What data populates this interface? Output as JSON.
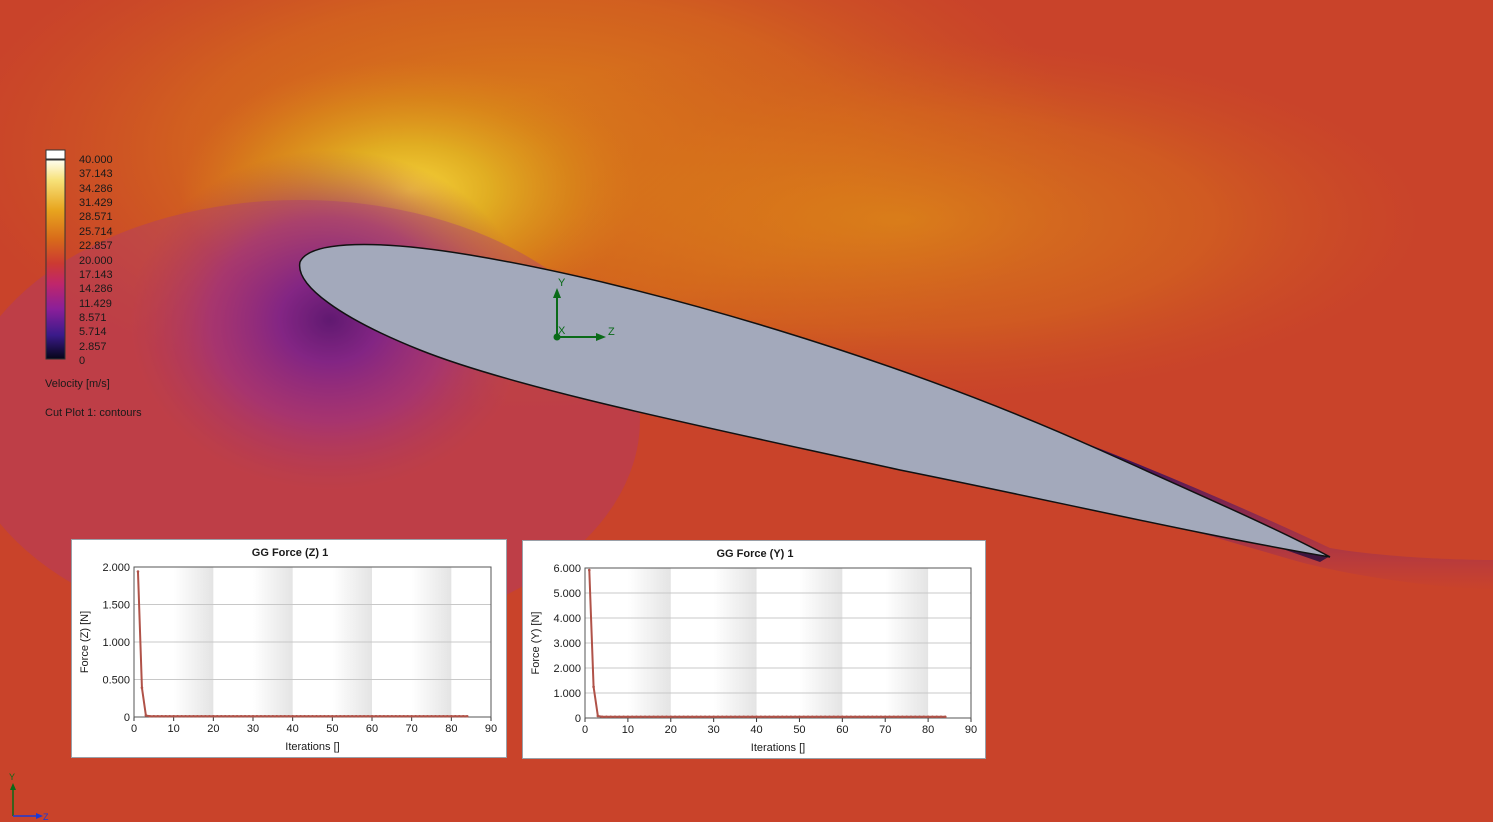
{
  "legend": {
    "ticks": [
      "40.000",
      "37.143",
      "34.286",
      "31.429",
      "28.571",
      "25.714",
      "22.857",
      "20.000",
      "17.143",
      "14.286",
      "11.429",
      "8.571",
      "5.714",
      "2.857",
      "0"
    ],
    "quantity_label": "Velocity [m/s]",
    "plot_label": "Cut Plot 1: contours"
  },
  "axes_triad": {
    "y": "Y",
    "x": "X",
    "z": "Z"
  },
  "corner_triad": {
    "y": "Y",
    "z": "Z"
  },
  "colors": {
    "freestream": "#c9432a",
    "suction_high": "#e3b324",
    "wake_low": "#2a0b5a",
    "airfoil": "#a3a9bb",
    "series": "#b05248"
  },
  "chart_data": [
    {
      "type": "line",
      "title": "GG Force (Z) 1",
      "xlabel": "Iterations []",
      "ylabel": "Force (Z) [N]",
      "xlim": [
        0,
        90
      ],
      "ylim": [
        0,
        2
      ],
      "x_ticks": [
        "0",
        "10",
        "20",
        "30",
        "40",
        "50",
        "60",
        "70",
        "80",
        "90"
      ],
      "y_ticks": [
        "0",
        "0.500",
        "1.000",
        "1.500",
        "2.000"
      ],
      "series": [
        {
          "x": [
            1,
            2,
            3,
            4,
            5,
            6,
            7,
            8,
            9,
            10,
            11,
            12,
            13,
            14,
            15,
            16,
            17,
            18,
            19,
            20,
            21,
            22,
            23,
            24,
            25,
            26,
            27,
            28,
            29,
            30,
            31,
            32,
            33,
            34,
            35,
            36,
            37,
            38,
            39,
            40,
            41,
            42,
            43,
            44,
            45,
            46,
            47,
            48,
            49,
            50,
            51,
            52,
            53,
            54,
            55,
            56,
            57,
            58,
            59,
            60,
            61,
            62,
            63,
            64,
            65,
            66,
            67,
            68,
            69,
            70,
            71,
            72,
            73,
            74,
            75,
            76,
            77,
            78,
            79,
            80,
            81,
            82,
            83,
            84
          ],
          "y": [
            1.94,
            0.39,
            0.02,
            0.01,
            0.01,
            0.01,
            0.01,
            0.01,
            0.01,
            0.01,
            0.01,
            0.01,
            0.01,
            0.01,
            0.01,
            0.01,
            0.01,
            0.01,
            0.01,
            0.01,
            0.01,
            0.01,
            0.01,
            0.01,
            0.01,
            0.01,
            0.01,
            0.01,
            0.01,
            0.01,
            0.01,
            0.01,
            0.01,
            0.01,
            0.01,
            0.01,
            0.01,
            0.01,
            0.01,
            0.01,
            0.01,
            0.01,
            0.01,
            0.01,
            0.01,
            0.01,
            0.01,
            0.01,
            0.01,
            0.01,
            0.01,
            0.01,
            0.01,
            0.01,
            0.01,
            0.01,
            0.01,
            0.01,
            0.01,
            0.01,
            0.01,
            0.01,
            0.01,
            0.01,
            0.01,
            0.01,
            0.01,
            0.01,
            0.01,
            0.01,
            0.01,
            0.01,
            0.01,
            0.01,
            0.01,
            0.01,
            0.01,
            0.01,
            0.01,
            0.01,
            0.01,
            0.01,
            0.01,
            0.01
          ]
        }
      ]
    },
    {
      "type": "line",
      "title": "GG Force (Y) 1",
      "xlabel": "Iterations []",
      "ylabel": "Force (Y) [N]",
      "xlim": [
        0,
        90
      ],
      "ylim": [
        0,
        6
      ],
      "x_ticks": [
        "0",
        "10",
        "20",
        "30",
        "40",
        "50",
        "60",
        "70",
        "80",
        "90"
      ],
      "y_ticks": [
        "0",
        "1.000",
        "2.000",
        "3.000",
        "4.000",
        "5.000",
        "6.000"
      ],
      "series": [
        {
          "x": [
            1,
            2,
            3,
            4,
            5,
            6,
            7,
            8,
            9,
            10,
            11,
            12,
            13,
            14,
            15,
            16,
            17,
            18,
            19,
            20,
            21,
            22,
            23,
            24,
            25,
            26,
            27,
            28,
            29,
            30,
            31,
            32,
            33,
            34,
            35,
            36,
            37,
            38,
            39,
            40,
            41,
            42,
            43,
            44,
            45,
            46,
            47,
            48,
            49,
            50,
            51,
            52,
            53,
            54,
            55,
            56,
            57,
            58,
            59,
            60,
            61,
            62,
            63,
            64,
            65,
            66,
            67,
            68,
            69,
            70,
            71,
            72,
            73,
            74,
            75,
            76,
            77,
            78,
            79,
            80,
            81,
            82,
            83,
            84
          ],
          "y": [
            5.92,
            1.25,
            0.08,
            0.05,
            0.05,
            0.05,
            0.05,
            0.05,
            0.05,
            0.05,
            0.05,
            0.05,
            0.05,
            0.05,
            0.05,
            0.05,
            0.05,
            0.05,
            0.05,
            0.05,
            0.05,
            0.05,
            0.05,
            0.05,
            0.05,
            0.05,
            0.05,
            0.05,
            0.05,
            0.05,
            0.05,
            0.05,
            0.05,
            0.05,
            0.05,
            0.05,
            0.05,
            0.05,
            0.05,
            0.05,
            0.05,
            0.05,
            0.05,
            0.05,
            0.05,
            0.05,
            0.05,
            0.05,
            0.05,
            0.05,
            0.05,
            0.05,
            0.05,
            0.05,
            0.05,
            0.05,
            0.05,
            0.05,
            0.05,
            0.05,
            0.05,
            0.05,
            0.05,
            0.05,
            0.05,
            0.05,
            0.05,
            0.05,
            0.05,
            0.05,
            0.05,
            0.05,
            0.05,
            0.05,
            0.05,
            0.05,
            0.05,
            0.05,
            0.05,
            0.05,
            0.05,
            0.05,
            0.05,
            0.05
          ]
        }
      ]
    }
  ]
}
